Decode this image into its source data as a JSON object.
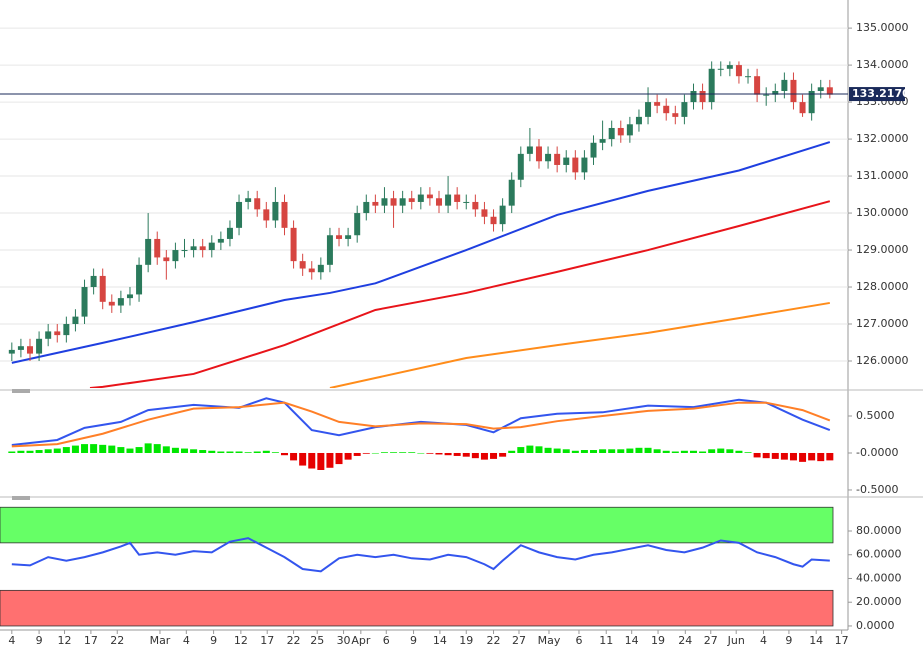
{
  "chart_data": [
    {
      "type": "candlestick",
      "open": [
        126.2,
        126.3,
        126.4,
        126.2,
        126.6,
        126.8,
        126.7,
        127.0,
        127.2,
        128.0,
        128.3,
        127.6,
        127.5,
        127.7,
        127.8,
        128.6,
        129.3,
        128.8,
        128.7,
        129.0,
        129.0,
        129.1,
        129.0,
        129.2,
        129.3,
        129.6,
        130.3,
        130.4,
        130.1,
        129.8,
        130.3,
        129.6,
        128.7,
        128.5,
        128.4,
        128.6,
        129.4,
        129.3,
        129.4,
        130.0,
        130.3,
        130.2,
        130.4,
        130.2,
        130.4,
        130.3,
        130.5,
        130.4,
        130.2,
        130.5,
        130.3,
        130.3,
        130.1,
        129.9,
        129.7,
        130.2,
        130.9,
        131.6,
        131.8,
        131.4,
        131.6,
        131.3,
        131.5,
        131.1,
        131.5,
        131.9,
        132.0,
        132.3,
        132.1,
        132.4,
        132.6,
        133.0,
        132.9,
        132.7,
        132.6,
        133.0,
        133.3,
        133.0,
        133.9,
        133.9,
        134.0,
        133.7,
        133.7,
        133.2,
        133.2,
        133.3,
        133.6,
        133.0,
        132.7,
        133.3,
        133.4
      ],
      "high": [
        126.5,
        126.6,
        126.6,
        126.8,
        127.0,
        127.0,
        127.2,
        127.4,
        128.2,
        128.5,
        128.5,
        127.8,
        127.9,
        128.0,
        128.8,
        130.0,
        129.5,
        129.0,
        129.2,
        129.3,
        129.3,
        129.3,
        129.4,
        129.5,
        129.8,
        130.5,
        130.6,
        130.6,
        130.3,
        130.7,
        130.5,
        129.8,
        128.9,
        128.7,
        128.8,
        129.6,
        129.6,
        129.6,
        130.2,
        130.5,
        130.5,
        130.7,
        130.6,
        130.6,
        130.6,
        130.7,
        130.7,
        130.6,
        131.0,
        130.7,
        130.5,
        130.5,
        130.3,
        130.1,
        130.4,
        131.1,
        131.8,
        132.3,
        132.0,
        131.8,
        131.8,
        131.7,
        131.7,
        131.7,
        132.1,
        132.5,
        132.5,
        132.5,
        132.6,
        132.8,
        133.4,
        133.2,
        133.1,
        132.9,
        133.2,
        133.5,
        133.5,
        134.1,
        134.1,
        134.1,
        134.1,
        133.9,
        133.9,
        133.4,
        133.5,
        133.8,
        133.8,
        133.2,
        133.5,
        133.6,
        133.6
      ],
      "low": [
        126.0,
        126.1,
        126.0,
        126.0,
        126.4,
        126.5,
        126.5,
        126.8,
        127.0,
        127.8,
        127.4,
        127.3,
        127.3,
        127.5,
        127.6,
        128.4,
        128.6,
        128.2,
        128.5,
        128.8,
        128.8,
        128.8,
        128.8,
        129.0,
        129.1,
        129.4,
        130.1,
        129.9,
        129.6,
        129.6,
        129.4,
        128.5,
        128.3,
        128.2,
        128.2,
        128.4,
        129.1,
        129.1,
        129.2,
        129.8,
        130.0,
        130.0,
        129.6,
        130.0,
        130.1,
        130.1,
        130.2,
        130.0,
        130.0,
        130.1,
        130.1,
        129.9,
        129.7,
        129.5,
        129.5,
        130.0,
        130.7,
        131.4,
        131.2,
        131.2,
        131.1,
        131.1,
        130.9,
        130.9,
        131.3,
        131.7,
        131.8,
        131.9,
        131.9,
        132.2,
        132.4,
        132.7,
        132.5,
        132.4,
        132.4,
        132.8,
        132.8,
        132.8,
        133.7,
        133.7,
        133.5,
        133.5,
        133.0,
        132.9,
        133.0,
        133.1,
        132.8,
        132.6,
        132.5,
        133.1,
        133.1
      ],
      "close": [
        126.3,
        126.4,
        126.2,
        126.6,
        126.8,
        126.7,
        127.0,
        127.2,
        128.0,
        128.3,
        127.6,
        127.5,
        127.7,
        127.8,
        128.6,
        129.3,
        128.8,
        128.7,
        129.0,
        129.0,
        129.1,
        129.0,
        129.2,
        129.3,
        129.6,
        130.3,
        130.4,
        130.1,
        129.8,
        130.3,
        129.6,
        128.7,
        128.5,
        128.4,
        128.6,
        129.4,
        129.3,
        129.4,
        130.0,
        130.3,
        130.2,
        130.4,
        130.2,
        130.4,
        130.3,
        130.5,
        130.4,
        130.2,
        130.5,
        130.3,
        130.3,
        130.1,
        129.9,
        129.7,
        130.2,
        130.9,
        131.6,
        131.8,
        131.4,
        131.6,
        131.3,
        131.5,
        131.1,
        131.5,
        131.9,
        132.0,
        132.3,
        132.1,
        132.4,
        132.6,
        133.0,
        132.9,
        132.7,
        132.6,
        133.0,
        133.3,
        133.0,
        133.9,
        133.9,
        134.0,
        133.7,
        133.7,
        133.2,
        133.2,
        133.3,
        133.6,
        133.0,
        132.7,
        133.3,
        133.4,
        133.2
      ],
      "up_color": "#2b7a5c",
      "down_color": "#d64541",
      "series": [
        {
          "color": "#1f3fe0",
          "x": [
            0,
            10,
            20,
            30,
            35,
            40,
            50,
            60,
            70,
            80,
            90
          ],
          "values": [
            125.95,
            126.49,
            127.05,
            127.65,
            127.84,
            128.1,
            129.0,
            129.95,
            130.6,
            131.15,
            131.92
          ]
        },
        {
          "color": "#e8141a",
          "x": [
            8.6,
            10,
            20,
            30,
            40,
            50,
            60,
            70,
            80,
            90
          ],
          "values": [
            125.27,
            125.3,
            125.65,
            126.43,
            127.38,
            127.84,
            128.41,
            129.0,
            129.65,
            130.32
          ]
        },
        {
          "color": "#ff8c1a",
          "x": [
            35,
            40,
            50,
            60,
            70,
            80,
            90
          ],
          "values": [
            125.27,
            125.54,
            126.08,
            126.43,
            126.76,
            127.16,
            127.57
          ]
        }
      ],
      "last_price": {
        "value": 133.217,
        "label": "133.2170"
      },
      "last_price_color": "#1a2a5a",
      "ylim": [
        125.27,
        135.76
      ],
      "yticks": [
        {
          "value": 126,
          "label": "126.0000"
        },
        {
          "value": 127,
          "label": "127.0000"
        },
        {
          "value": 128,
          "label": "128.0000"
        },
        {
          "value": 129,
          "label": "129.0000"
        },
        {
          "value": 130,
          "label": "130.0000"
        },
        {
          "value": 131,
          "label": "131.0000"
        },
        {
          "value": 132,
          "label": "132.0000"
        },
        {
          "value": 133,
          "label": "133.0000"
        },
        {
          "value": 134,
          "label": "134.0000"
        },
        {
          "value": 135,
          "label": "135.0000"
        }
      ],
      "xlim": [
        -1.3,
        92
      ],
      "grid": true
    },
    {
      "type": "macd",
      "histogram": [
        0.02,
        0.03,
        0.03,
        0.04,
        0.05,
        0.06,
        0.08,
        0.1,
        0.12,
        0.12,
        0.11,
        0.1,
        0.08,
        0.06,
        0.08,
        0.13,
        0.12,
        0.09,
        0.07,
        0.06,
        0.05,
        0.04,
        0.03,
        0.02,
        0.02,
        0.02,
        0.01,
        0.02,
        0.03,
        0.01,
        -0.03,
        -0.1,
        -0.17,
        -0.21,
        -0.23,
        -0.2,
        -0.15,
        -0.09,
        -0.04,
        -0.01,
        0.0,
        0.01,
        0.01,
        0.01,
        0.01,
        0.0,
        -0.01,
        -0.02,
        -0.03,
        -0.04,
        -0.05,
        -0.07,
        -0.09,
        -0.08,
        -0.05,
        0.03,
        0.08,
        0.1,
        0.09,
        0.07,
        0.06,
        0.05,
        0.03,
        0.04,
        0.04,
        0.05,
        0.05,
        0.05,
        0.06,
        0.07,
        0.07,
        0.05,
        0.03,
        0.02,
        0.03,
        0.03,
        0.02,
        0.05,
        0.06,
        0.05,
        0.03,
        0.01,
        -0.06,
        -0.07,
        -0.08,
        -0.09,
        -0.1,
        -0.12,
        -0.1,
        -0.11,
        -0.1
      ],
      "up_color": "#00e600",
      "down_color": "#e60000",
      "series": [
        {
          "color": "#3355ee",
          "x": [
            0,
            5,
            8,
            12,
            15,
            20,
            25,
            28,
            30,
            33,
            36,
            40,
            45,
            50,
            53,
            56,
            60,
            65,
            70,
            75,
            80,
            83,
            87,
            90
          ],
          "values": [
            0.108,
            0.176,
            0.34,
            0.42,
            0.58,
            0.65,
            0.61,
            0.74,
            0.68,
            0.31,
            0.24,
            0.35,
            0.42,
            0.38,
            0.28,
            0.47,
            0.53,
            0.55,
            0.64,
            0.62,
            0.72,
            0.68,
            0.45,
            0.31
          ]
        },
        {
          "color": "#ff7f27",
          "x": [
            0,
            5,
            10,
            15,
            20,
            25,
            30,
            33,
            36,
            40,
            45,
            50,
            53,
            56,
            60,
            65,
            70,
            75,
            80,
            83,
            87,
            90
          ],
          "values": [
            0.09,
            0.12,
            0.26,
            0.45,
            0.6,
            0.62,
            0.68,
            0.56,
            0.42,
            0.36,
            0.4,
            0.39,
            0.33,
            0.35,
            0.43,
            0.5,
            0.57,
            0.6,
            0.68,
            0.68,
            0.58,
            0.44
          ]
        }
      ],
      "ylim": [
        -0.568,
        0.784
      ],
      "yticks": [
        {
          "value": 0.5,
          "label": "0.5000"
        },
        {
          "value": 0,
          "label": "-0.0000"
        },
        {
          "value": -0.5,
          "label": "-0.5000"
        }
      ],
      "xlim": [
        -1.3,
        92
      ],
      "grid": false
    },
    {
      "type": "line",
      "bands": [
        {
          "from": 70,
          "to": 100,
          "color": "#66ff66"
        },
        {
          "from": 0,
          "to": 30,
          "color": "#ff7070"
        }
      ],
      "series": [
        {
          "color": "#3355ee",
          "x": [
            0,
            2,
            4,
            6,
            8,
            10,
            12,
            13,
            14,
            16,
            18,
            20,
            22,
            24,
            26,
            28,
            30,
            32,
            34,
            36,
            38,
            40,
            42,
            44,
            46,
            48,
            50,
            52,
            53,
            54,
            56,
            58,
            60,
            62,
            64,
            66,
            68,
            70,
            72,
            74,
            76,
            78,
            80,
            82,
            84,
            86,
            87,
            88,
            90
          ],
          "values": [
            52,
            51,
            58,
            55,
            58,
            62,
            67,
            70,
            60,
            62,
            60,
            63,
            62,
            71,
            74,
            66,
            58,
            48,
            46,
            57,
            60,
            58,
            60,
            57,
            56,
            60,
            58,
            52,
            48,
            55,
            68,
            62,
            58,
            56,
            60,
            62,
            65,
            68,
            64,
            62,
            66,
            72,
            70,
            62,
            58,
            52,
            50,
            56,
            55
          ]
        }
      ],
      "ylim": [
        -3.4,
        101.9
      ],
      "yticks": [
        {
          "value": 0,
          "label": "0.0000"
        },
        {
          "value": 20,
          "label": "20.0000"
        },
        {
          "value": 40,
          "label": "40.0000"
        },
        {
          "value": 60,
          "label": "60.0000"
        },
        {
          "value": 80,
          "label": "80.0000"
        }
      ],
      "xlim": [
        -1.3,
        92
      ],
      "grid": false,
      "xticks": [
        {
          "value": 0,
          "label": "4"
        },
        {
          "value": 3,
          "label": "9"
        },
        {
          "value": 5.8,
          "label": "12"
        },
        {
          "value": 8.7,
          "label": "17"
        },
        {
          "value": 11.6,
          "label": "22"
        },
        {
          "value": 16.3,
          "label": "Mar"
        },
        {
          "value": 19.2,
          "label": "4"
        },
        {
          "value": 22.2,
          "label": "9"
        },
        {
          "value": 25.2,
          "label": "12"
        },
        {
          "value": 28.1,
          "label": "17"
        },
        {
          "value": 31,
          "label": "22"
        },
        {
          "value": 33.6,
          "label": "25"
        },
        {
          "value": 36.5,
          "label": "30"
        },
        {
          "value": 38.4,
          "label": "Apr"
        },
        {
          "value": 41.2,
          "label": "6"
        },
        {
          "value": 44.2,
          "label": "9"
        },
        {
          "value": 47.1,
          "label": "14"
        },
        {
          "value": 50,
          "label": "19"
        },
        {
          "value": 53,
          "label": "22"
        },
        {
          "value": 55.8,
          "label": "27"
        },
        {
          "value": 59.1,
          "label": "May"
        },
        {
          "value": 62.4,
          "label": "6"
        },
        {
          "value": 65.4,
          "label": "11"
        },
        {
          "value": 68.2,
          "label": "14"
        },
        {
          "value": 71.1,
          "label": "19"
        },
        {
          "value": 74.1,
          "label": "24"
        },
        {
          "value": 76.9,
          "label": "27"
        },
        {
          "value": 79.7,
          "label": "Jun"
        },
        {
          "value": 82.7,
          "label": "4"
        },
        {
          "value": 85.5,
          "label": "9"
        },
        {
          "value": 88.5,
          "label": "14"
        },
        {
          "value": 91.3,
          "label": "17"
        }
      ]
    }
  ]
}
